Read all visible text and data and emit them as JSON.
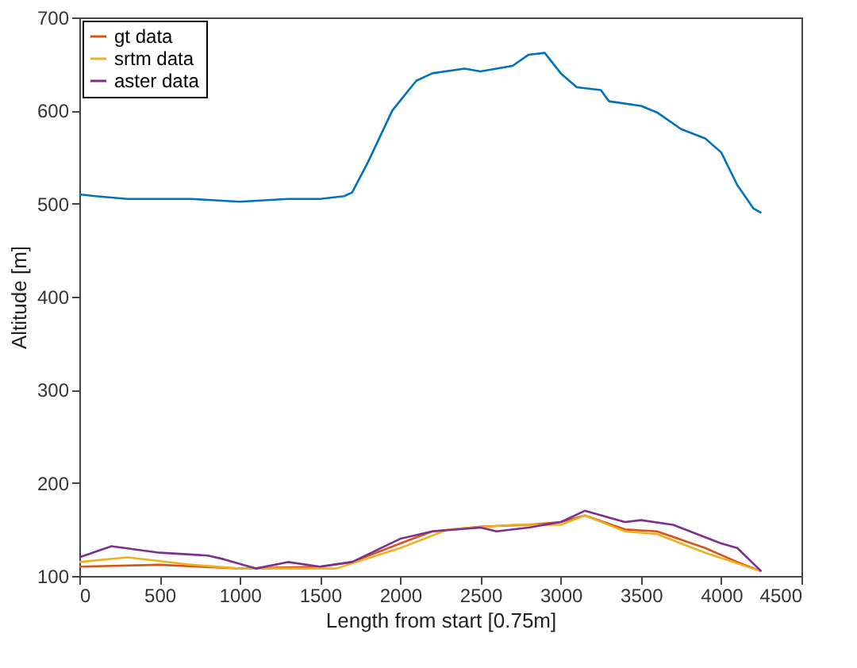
{
  "chart_data": {
    "type": "line",
    "xlabel": "Length from start [0.75m]",
    "ylabel": "Altitude [m]",
    "xlim": [
      0,
      4500
    ],
    "ylim": [
      100,
      700
    ],
    "xticks": [
      0,
      500,
      1000,
      1500,
      2000,
      2500,
      3000,
      3500,
      4000,
      4500
    ],
    "yticks": [
      100,
      200,
      300,
      400,
      500,
      600,
      700
    ],
    "grid": false,
    "legend": "top left",
    "marker": "none",
    "line_style": "solid",
    "series": [
      {
        "color": "#0072bd",
        "x": [
          0,
          100,
          300,
          500,
          700,
          1000,
          1300,
          1500,
          1650,
          1700,
          1800,
          1950,
          2100,
          2200,
          2400,
          2500,
          2700,
          2800,
          2900,
          3000,
          3100,
          3250,
          3300,
          3500,
          3600,
          3750,
          3900,
          4000,
          4100,
          4200,
          4250
        ],
        "values": [
          510,
          508,
          505,
          505,
          505,
          502,
          505,
          505,
          508,
          512,
          545,
          600,
          632,
          640,
          645,
          642,
          648,
          660,
          662,
          640,
          625,
          622,
          610,
          605,
          598,
          580,
          570,
          555,
          520,
          495,
          490
        ]
      },
      {
        "name": "gt data",
        "color": "#d95319",
        "x": [
          0,
          500,
          1000,
          1500,
          1700,
          2000,
          2200,
          2500,
          2800,
          3000,
          3150,
          3400,
          3600,
          3900,
          4100,
          4250
        ],
        "values": [
          110,
          112,
          108,
          110,
          115,
          135,
          148,
          153,
          155,
          158,
          165,
          150,
          148,
          130,
          115,
          105
        ]
      },
      {
        "name": "srtm data",
        "color": "#edb120",
        "x": [
          0,
          300,
          700,
          1000,
          1600,
          2000,
          2300,
          2700,
          3000,
          3150,
          3400,
          3600,
          3900,
          4250
        ],
        "values": [
          115,
          120,
          112,
          108,
          108,
          130,
          150,
          155,
          155,
          165,
          148,
          145,
          125,
          105
        ]
      },
      {
        "name": "aster data",
        "color": "#7e2f8e",
        "x": [
          0,
          200,
          500,
          800,
          900,
          1100,
          1300,
          1500,
          1700,
          2000,
          2200,
          2500,
          2600,
          2800,
          3000,
          3150,
          3400,
          3500,
          3700,
          4000,
          4100,
          4250
        ],
        "values": [
          120,
          132,
          125,
          122,
          118,
          108,
          115,
          110,
          115,
          140,
          148,
          152,
          148,
          152,
          158,
          170,
          158,
          160,
          155,
          135,
          130,
          105
        ]
      }
    ]
  }
}
